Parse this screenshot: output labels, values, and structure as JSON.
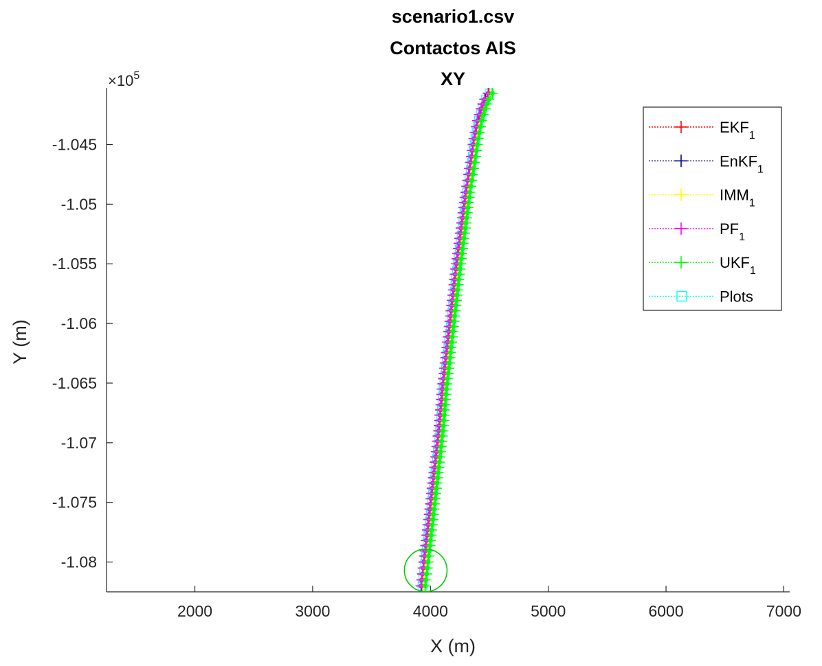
{
  "chart_data": {
    "type": "line",
    "title_lines": [
      "scenario1.csv",
      "Contactos AIS",
      "XY"
    ],
    "xlabel": "X (m)",
    "ylabel": "Y (m)",
    "y_exponent_label": "×10",
    "y_exponent_power": "5",
    "xlim": [
      1250,
      7050
    ],
    "ylim": [
      -108.25,
      -104.025
    ],
    "y_scale_factor": 1000,
    "x_ticks": [
      2000,
      3000,
      4000,
      5000,
      6000,
      7000
    ],
    "x_tick_labels": [
      "2000",
      "3000",
      "4000",
      "5000",
      "6000",
      "7000"
    ],
    "y_ticks": [
      -104.5,
      -105,
      -105.5,
      -106,
      -106.5,
      -107,
      -107.5,
      -108
    ],
    "y_tick_labels": [
      "-1.045",
      "-1.05",
      "-1.055",
      "-1.06",
      "-1.065",
      "-1.07",
      "-1.075",
      "-1.08"
    ],
    "grid": false,
    "legend_position": "top-right",
    "track": {
      "x": [
        3930,
        3960,
        4000,
        4040,
        4080,
        4110,
        4150,
        4190,
        4230,
        4270,
        4310,
        4350,
        4380,
        4410,
        4440,
        4470,
        4500
      ],
      "y": [
        -108.2,
        -107.95,
        -107.6,
        -107.25,
        -106.9,
        -106.55,
        -106.2,
        -105.85,
        -105.5,
        -105.2,
        -104.9,
        -104.65,
        -104.45,
        -104.3,
        -104.2,
        -104.12,
        -104.07
      ]
    },
    "series": [
      {
        "name": "EKF",
        "subscript": "1",
        "color": "#ff0000",
        "marker": "plus",
        "x_offset": 0
      },
      {
        "name": "EnKF",
        "subscript": "1",
        "color": "#00008b",
        "marker": "plus",
        "x_offset": -5
      },
      {
        "name": "IMM",
        "subscript": "1",
        "color": "#ffff00",
        "marker": "plus",
        "x_offset": 5
      },
      {
        "name": "PF",
        "subscript": "1",
        "color": "#ff00ff",
        "marker": "plus",
        "x_offset": -10
      },
      {
        "name": "UKF",
        "subscript": "1",
        "color": "#00ff00",
        "marker": "plus",
        "x_offset": 25
      },
      {
        "name": "Plots",
        "subscript": "",
        "color": "#00ffff",
        "marker": "square",
        "x_offset": 0
      }
    ],
    "start_marker": {
      "x": 3960,
      "y": -108.07,
      "color": "#00cc00",
      "shape": "circle"
    }
  }
}
